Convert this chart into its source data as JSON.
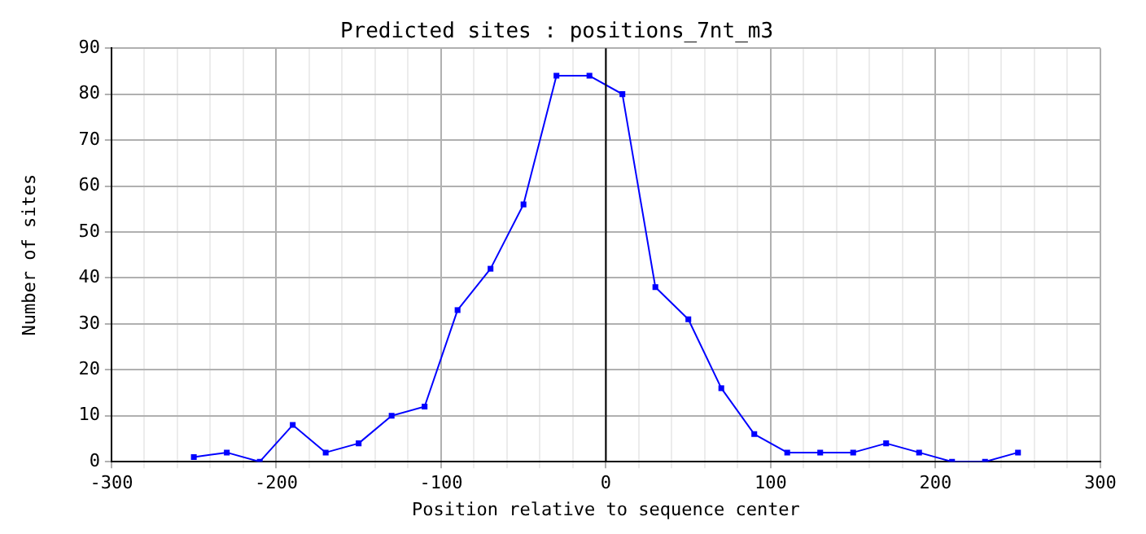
{
  "chart_data": {
    "type": "line",
    "title": "Predicted sites : positions_7nt_m3",
    "xlabel": "Position relative to sequence center",
    "ylabel": "Number of sites",
    "x": [
      -250,
      -230,
      -210,
      -190,
      -170,
      -150,
      -130,
      -110,
      -90,
      -70,
      -50,
      -30,
      -10,
      10,
      30,
      50,
      70,
      90,
      110,
      130,
      150,
      170,
      190,
      210,
      230,
      250
    ],
    "series": [
      {
        "color": "#0000ff",
        "values": [
          1,
          2,
          0,
          8,
          2,
          4,
          10,
          12,
          33,
          42,
          56,
          84,
          84,
          80,
          38,
          31,
          16,
          6,
          2,
          2,
          2,
          4,
          2,
          0,
          0,
          2
        ]
      }
    ],
    "xlim": [
      -300,
      300
    ],
    "xticks": [
      -300,
      {
        "value": -280,
        "label": null
      },
      {
        "value": -260,
        "label": null
      },
      {
        "value": -240,
        "label": null
      },
      {
        "value": -220,
        "label": null
      },
      -200,
      {
        "value": -180,
        "label": null
      },
      {
        "value": -160,
        "label": null
      },
      {
        "value": -140,
        "label": null
      },
      {
        "value": -120,
        "label": null
      },
      -100,
      {
        "value": -80,
        "label": null
      },
      {
        "value": -60,
        "label": null
      },
      {
        "value": -40,
        "label": null
      },
      {
        "value": -20,
        "label": null
      },
      0,
      {
        "value": 20,
        "label": null
      },
      {
        "value": 40,
        "label": null
      },
      {
        "value": 60,
        "label": null
      },
      {
        "value": 80,
        "label": null
      },
      100,
      {
        "value": 120,
        "label": null
      },
      {
        "value": 140,
        "label": null
      },
      {
        "value": 160,
        "label": null
      },
      {
        "value": 180,
        "label": null
      },
      200,
      {
        "value": 220,
        "label": null
      },
      {
        "value": 240,
        "label": null
      },
      {
        "value": 260,
        "label": null
      },
      {
        "value": 280,
        "label": null
      },
      300
    ],
    "ylim": [
      0,
      90
    ],
    "yticks": [
      0,
      10,
      20,
      30,
      40,
      50,
      60,
      70,
      80,
      90
    ],
    "grid": true,
    "marker": "square",
    "line_style": "solid",
    "legend": false,
    "ref_lines": [
      {
        "axis": "x",
        "value": 0,
        "color": "#000000"
      }
    ]
  }
}
